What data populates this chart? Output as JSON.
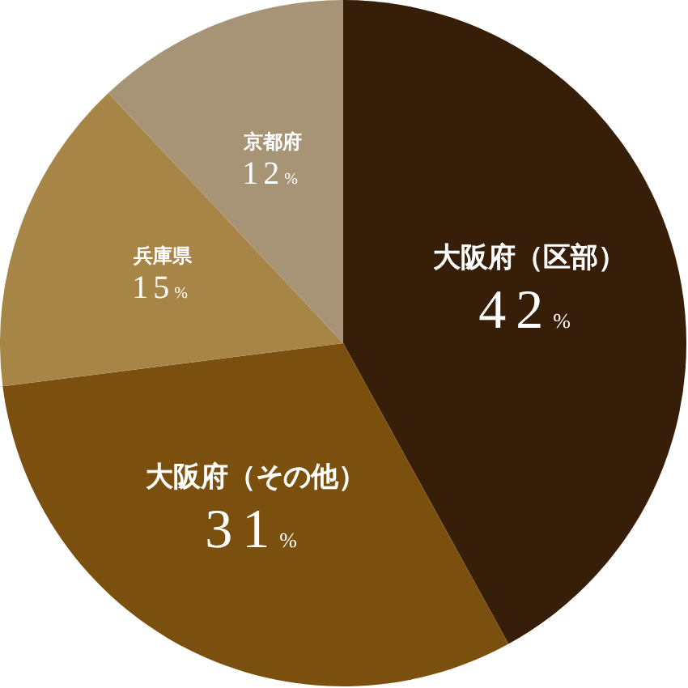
{
  "chart_data": {
    "type": "pie",
    "categories": [
      "大阪府（区部）",
      "大阪府（その他）",
      "兵庫県",
      "京都府"
    ],
    "values": [
      42,
      31,
      15,
      12
    ],
    "value_labels": [
      "42%",
      "31%",
      "15%",
      "12%"
    ],
    "colors": [
      "#361e08",
      "#7b500f",
      "#a78547",
      "#a79375"
    ],
    "legend": false
  }
}
